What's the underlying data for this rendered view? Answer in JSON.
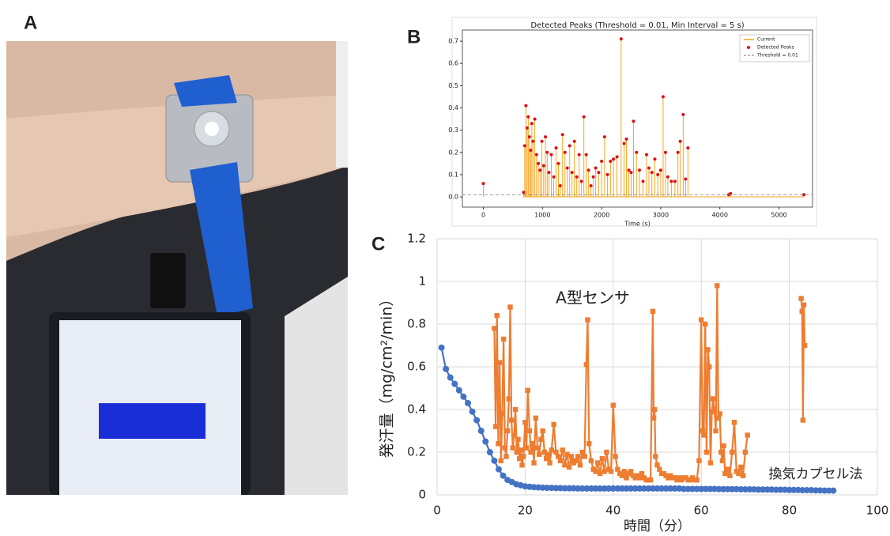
{
  "panel_labels": [
    "A",
    "B",
    "C"
  ],
  "chart_data": [
    {
      "type": "stem",
      "title": "Detected Peaks (Threshold = 0.01, Min Interval = 5 s)",
      "x_label": "Time (s)",
      "xlim": [
        -354,
        5567
      ],
      "xticks": [
        0,
        1000,
        2000,
        3000,
        4000,
        5000
      ],
      "ylim": [
        -0.046,
        0.75
      ],
      "yticks": [
        {
          "value": 0,
          "label": "0.0"
        },
        0.1,
        0.2,
        0.3,
        0.4,
        0.5,
        0.6,
        0.7
      ],
      "threshold": {
        "value": 0.01,
        "label": "Threshold = 0.01",
        "color": "#777777"
      },
      "legend": "upper right",
      "series": [
        {
          "name": "Current",
          "color": "#f5a623"
        },
        {
          "name": "Detected Peaks",
          "color": "#e01010",
          "x": [
            0,
            680,
            700,
            720,
            740,
            760,
            780,
            800,
            820,
            840,
            870,
            900,
            930,
            960,
            990,
            1020,
            1050,
            1080,
            1110,
            1150,
            1190,
            1230,
            1270,
            1300,
            1340,
            1380,
            1420,
            1460,
            1500,
            1540,
            1580,
            1620,
            1660,
            1700,
            1740,
            1780,
            1820,
            1860,
            1900,
            1950,
            2000,
            2050,
            2100,
            2150,
            2200,
            2260,
            2330,
            2380,
            2420,
            2460,
            2500,
            2540,
            2590,
            2640,
            2700,
            2760,
            2800,
            2850,
            2900,
            2950,
            3000,
            3040,
            3080,
            3120,
            3180,
            3240,
            3290,
            3330,
            3380,
            3420,
            3460,
            4150,
            4180,
            5420
          ],
          "values": [
            0.06,
            0.02,
            0.23,
            0.41,
            0.31,
            0.36,
            0.27,
            0.21,
            0.33,
            0.25,
            0.35,
            0.19,
            0.15,
            0.12,
            0.25,
            0.14,
            0.27,
            0.2,
            0.11,
            0.19,
            0.09,
            0.22,
            0.15,
            0.05,
            0.28,
            0.2,
            0.13,
            0.23,
            0.11,
            0.25,
            0.09,
            0.19,
            0.07,
            0.36,
            0.19,
            0.12,
            0.05,
            0.09,
            0.13,
            0.11,
            0.16,
            0.27,
            0.1,
            0.16,
            0.17,
            0.18,
            0.71,
            0.24,
            0.26,
            0.12,
            0.11,
            0.34,
            0.2,
            0.12,
            0.07,
            0.19,
            0.13,
            0.11,
            0.17,
            0.1,
            0.12,
            0.45,
            0.2,
            0.09,
            0.07,
            0.07,
            0.2,
            0.25,
            0.37,
            0.08,
            0.22,
            0.01,
            0.015,
            0.01
          ]
        }
      ]
    },
    {
      "type": "line",
      "x_label": "時間（分）",
      "y_label": "発汗量（mg/cm²/min）",
      "xlim": [
        0,
        100
      ],
      "xticks": [
        0,
        20,
        40,
        60,
        80,
        100
      ],
      "ylim": [
        0,
        1.2
      ],
      "yticks": [
        0,
        0.2,
        0.4,
        0.6,
        0.8,
        1,
        1.2
      ],
      "grid": true,
      "annotations": [
        "A型センサ",
        "換気カプセル法"
      ],
      "series": [
        {
          "color": "#ed7d31",
          "marker": "square",
          "x": [
            13,
            13.3,
            13.6,
            13.9,
            14.2,
            14.5,
            14.8,
            15.1,
            15.4,
            15.7,
            16,
            16.3,
            16.6,
            16.9,
            17.2,
            17.5,
            17.8,
            18.1,
            18.4,
            18.7,
            19,
            19.3,
            19.6,
            20,
            20.3,
            20.6,
            21,
            21.3,
            21.7,
            22,
            22.4,
            22.8,
            23.2,
            23.6,
            24,
            24.4,
            24.8,
            25.2,
            25.6,
            26,
            26.5,
            27,
            27.5,
            28,
            28.5,
            29,
            29.5,
            30,
            30.5,
            31,
            31.5,
            32,
            32.5,
            33,
            33.5,
            33.9,
            34.2,
            34.5,
            35,
            35.5,
            36,
            36.5,
            37,
            37.5,
            38,
            38.5,
            39,
            39.5,
            40,
            40.5,
            41,
            41.5,
            42,
            42.5,
            43,
            43.5,
            44,
            44.5,
            45,
            45.5,
            46,
            46.5,
            47,
            47.5,
            48,
            48.5,
            49,
            49.2,
            49.4,
            49.6,
            50,
            50.5,
            51,
            51.5,
            52,
            52.5,
            53,
            53.5,
            54,
            54.5,
            55,
            55.5,
            56,
            56.5,
            57,
            57.5,
            58,
            58.5,
            59,
            59.5,
            60,
            60.3,
            60.6,
            60.9,
            61.2,
            61.5,
            61.8,
            62.1,
            62.4,
            62.7,
            63,
            63.3,
            63.6,
            63.9,
            64.2,
            64.5,
            64.8,
            65.1,
            65.4,
            65.7,
            66,
            66.5,
            67,
            67.5,
            68,
            68.5,
            69,
            69.5,
            70,
            70.5,
            null,
            82.7,
            82.9,
            83.1,
            83.3,
            83.5
          ],
          "values": [
            0.78,
            0.32,
            0.84,
            0.24,
            0.62,
            0.16,
            0.38,
            0.73,
            0.22,
            0.18,
            0.3,
            0.45,
            0.88,
            0.35,
            0.22,
            0.28,
            0.4,
            0.2,
            0.26,
            0.17,
            0.21,
            0.14,
            0.18,
            0.34,
            0.22,
            0.49,
            0.3,
            0.2,
            0.24,
            0.15,
            0.36,
            0.22,
            0.19,
            0.26,
            0.3,
            0.2,
            0.17,
            0.19,
            0.15,
            0.21,
            0.33,
            0.2,
            0.18,
            0.16,
            0.21,
            0.14,
            0.19,
            0.13,
            0.18,
            0.15,
            0.16,
            0.18,
            0.14,
            0.2,
            0.18,
            0.61,
            0.82,
            0.24,
            0.16,
            0.12,
            0.11,
            0.15,
            0.1,
            0.17,
            0.11,
            0.2,
            0.12,
            0.11,
            0.42,
            0.18,
            0.12,
            0.1,
            0.09,
            0.11,
            0.08,
            0.1,
            0.11,
            0.09,
            0.08,
            0.09,
            0.08,
            0.1,
            0.08,
            0.07,
            0.07,
            0.07,
            0.86,
            0.36,
            0.4,
            0.18,
            0.14,
            0.12,
            0.1,
            0.1,
            0.09,
            0.08,
            0.09,
            0.08,
            0.08,
            0.07,
            0.08,
            0.07,
            0.08,
            0.08,
            0.07,
            0.07,
            0.08,
            0.07,
            0.07,
            0.16,
            0.82,
            0.3,
            0.28,
            0.8,
            0.2,
            0.68,
            0.6,
            0.15,
            0.39,
            0.45,
            0.4,
            0.3,
            0.98,
            0.36,
            0.38,
            0.2,
            0.16,
            0.23,
            0.1,
            0.1,
            0.12,
            0.09,
            0.2,
            0.34,
            0.11,
            0.1,
            0.13,
            0.09,
            0.2,
            0.28,
            null,
            0.92,
            0.86,
            0.35,
            0.89,
            0.7
          ]
        },
        {
          "color": "#4472c4",
          "marker": "circle",
          "x": [
            1,
            2,
            3,
            4,
            5,
            6,
            7,
            8,
            9,
            10,
            11,
            12,
            13,
            14,
            15,
            16,
            17,
            18,
            19,
            20,
            21,
            22,
            23,
            24,
            25,
            26,
            27,
            28,
            29,
            30,
            31,
            32,
            33,
            34,
            35,
            36,
            37,
            38,
            39,
            40,
            41,
            42,
            43,
            44,
            45,
            46,
            47,
            48,
            49,
            50,
            51,
            52,
            53,
            54,
            55,
            56,
            57,
            58,
            59,
            60,
            61,
            62,
            63,
            64,
            65,
            66,
            67,
            68,
            69,
            70,
            71,
            72,
            73,
            74,
            75,
            76,
            77,
            78,
            79,
            80,
            81,
            82,
            83,
            84,
            85,
            86,
            87,
            88,
            89,
            90
          ],
          "values": [
            0.69,
            0.59,
            0.55,
            0.52,
            0.49,
            0.46,
            0.43,
            0.39,
            0.35,
            0.3,
            0.25,
            0.2,
            0.16,
            0.12,
            0.09,
            0.07,
            0.06,
            0.05,
            0.045,
            0.04,
            0.038,
            0.036,
            0.035,
            0.034,
            0.033,
            0.033,
            0.032,
            0.032,
            0.031,
            0.031,
            0.031,
            0.03,
            0.03,
            0.03,
            0.03,
            0.03,
            0.03,
            0.03,
            0.03,
            0.03,
            0.03,
            0.03,
            0.03,
            0.03,
            0.03,
            0.03,
            0.03,
            0.03,
            0.03,
            0.03,
            0.03,
            0.03,
            0.03,
            0.03,
            0.03,
            0.028,
            0.028,
            0.028,
            0.028,
            0.028,
            0.028,
            0.028,
            0.028,
            0.027,
            0.027,
            0.027,
            0.027,
            0.027,
            0.026,
            0.026,
            0.026,
            0.026,
            0.025,
            0.025,
            0.025,
            0.025,
            0.024,
            0.024,
            0.024,
            0.023,
            0.023,
            0.023,
            0.022,
            0.022,
            0.022,
            0.021,
            0.021,
            0.02,
            0.02,
            0.02
          ]
        }
      ]
    }
  ]
}
